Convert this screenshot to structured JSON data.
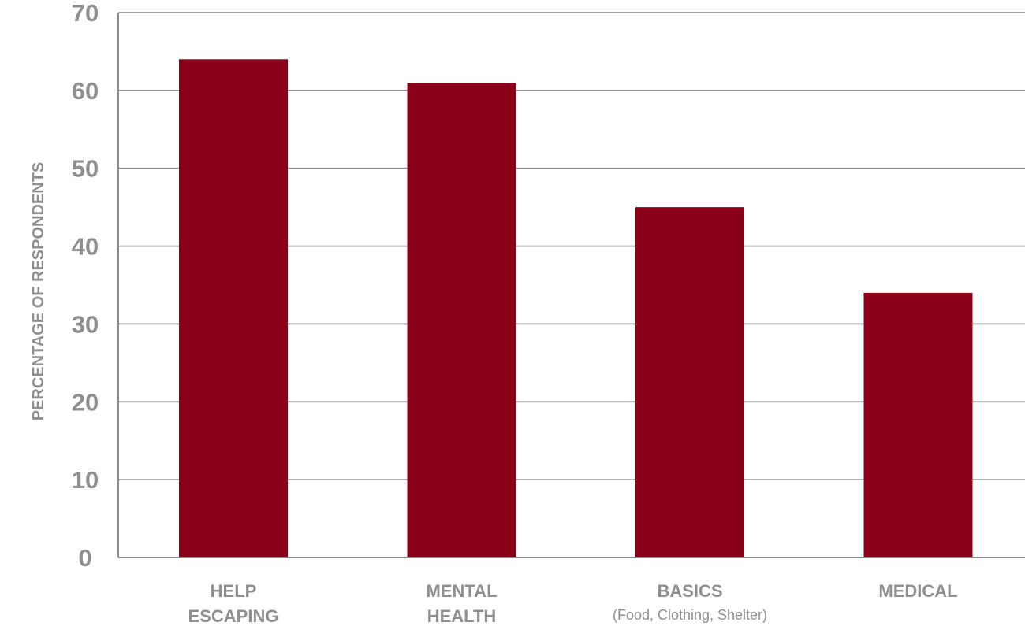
{
  "chart_data": {
    "type": "bar",
    "ylabel": "PERCENTAGE OF RESPONDENTS",
    "ylim": [
      0,
      70
    ],
    "yticks": [
      0,
      10,
      20,
      30,
      40,
      50,
      60,
      70
    ],
    "grid": true,
    "categories": [
      {
        "lines": [
          "HELP",
          "ESCAPING"
        ],
        "sub": ""
      },
      {
        "lines": [
          "MENTAL",
          "HEALTH"
        ],
        "sub": ""
      },
      {
        "lines": [
          "BASICS"
        ],
        "sub": "(Food, Clothing, Shelter)"
      },
      {
        "lines": [
          "MEDICAL"
        ],
        "sub": ""
      }
    ],
    "values": [
      64,
      61,
      45,
      34
    ],
    "bar_color": "#8b0019"
  }
}
